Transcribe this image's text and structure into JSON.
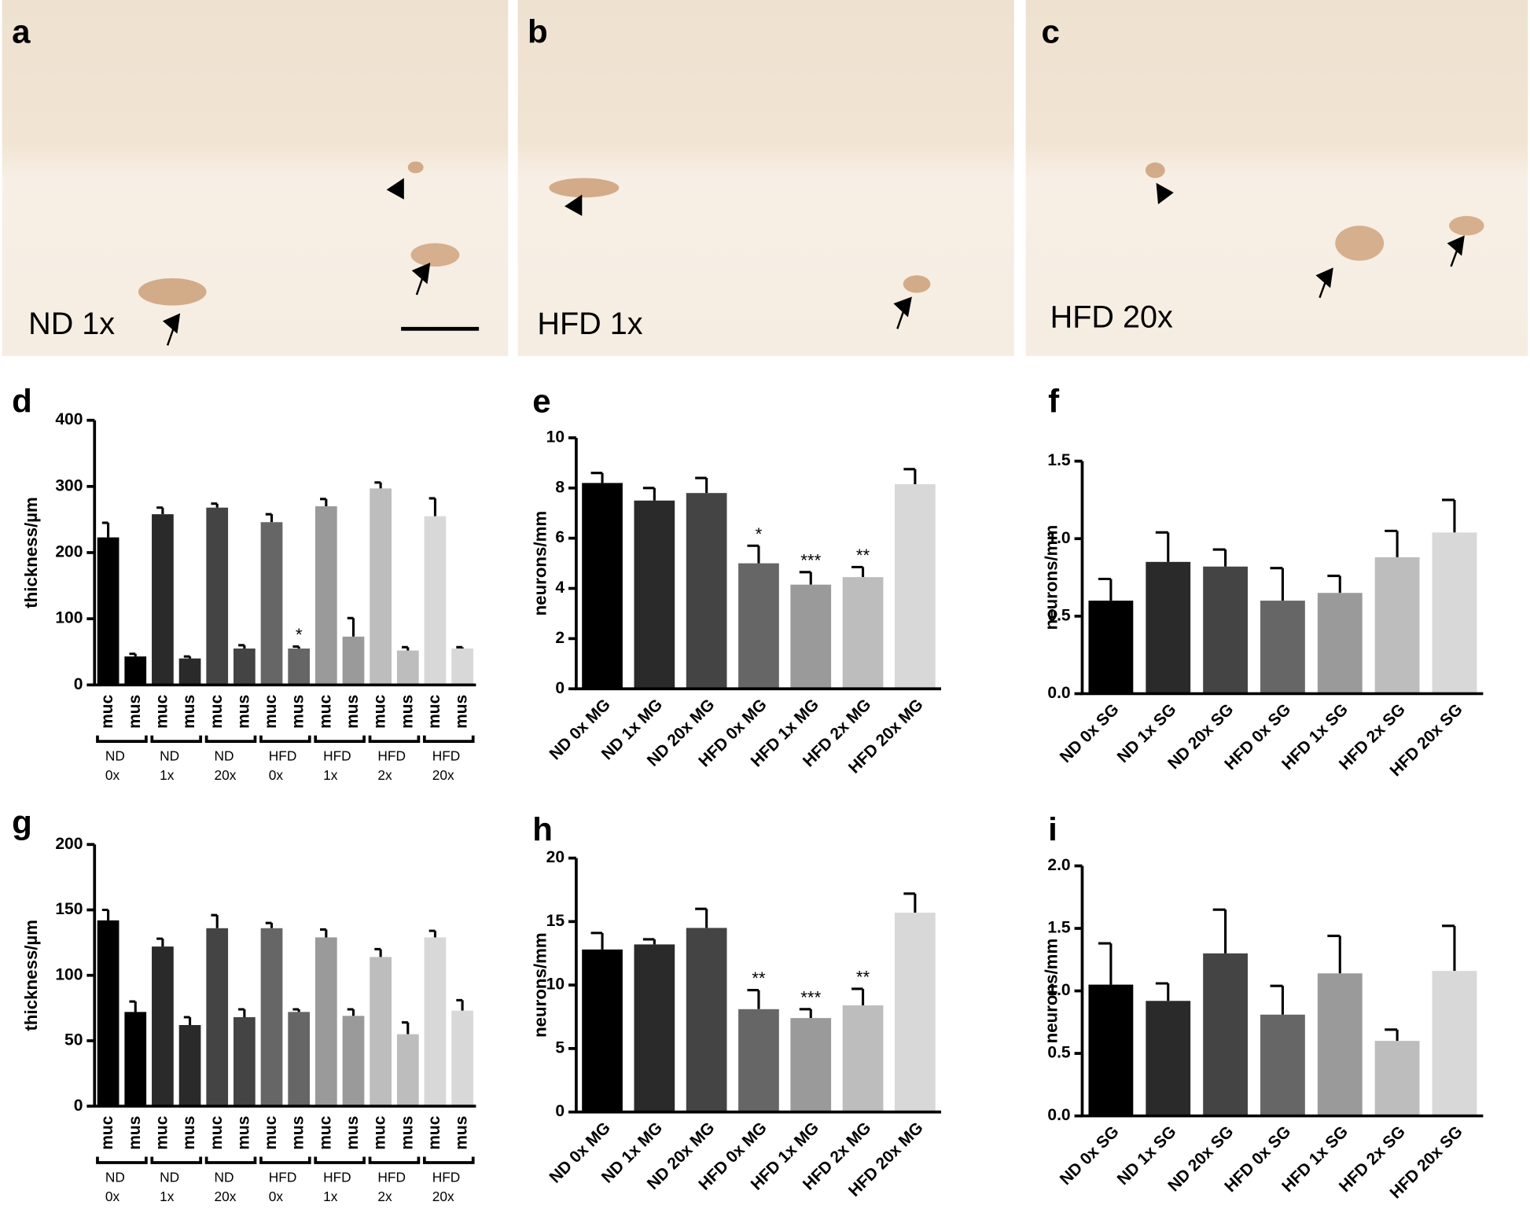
{
  "images": [
    {
      "letter": "a",
      "label": "ND 1x"
    },
    {
      "letter": "b",
      "label": "HFD 1x"
    },
    {
      "letter": "c",
      "label": "HFD 20x"
    }
  ],
  "chart_data": [
    {
      "type": "bar",
      "letter": "d",
      "y_label": "thickness/µm",
      "categories": [
        "muc",
        "mus",
        "muc",
        "mus",
        "muc",
        "mus",
        "muc",
        "mus",
        "muc",
        "mus",
        "muc",
        "mus",
        "muc",
        "mus"
      ],
      "groups": [
        [
          "ND",
          "0x"
        ],
        [
          "ND",
          "1x"
        ],
        [
          "ND",
          "20x"
        ],
        [
          "HFD",
          "0x"
        ],
        [
          "HFD",
          "1x"
        ],
        [
          "HFD",
          "2x"
        ],
        [
          "HFD",
          "20x"
        ]
      ],
      "values": [
        223,
        43,
        258,
        40,
        268,
        55,
        246,
        55,
        270,
        73,
        297,
        52,
        255,
        55
      ],
      "errors": [
        22,
        4,
        10,
        3,
        6,
        5,
        12,
        3,
        11,
        28,
        9,
        5,
        27,
        2
      ],
      "significance": [
        null,
        null,
        null,
        null,
        null,
        null,
        null,
        "*",
        null,
        null,
        null,
        null,
        null,
        null
      ],
      "colors": [
        "#000000",
        "#000000",
        "#2a2a2a",
        "#2a2a2a",
        "#444444",
        "#444444",
        "#666666",
        "#666666",
        "#9a9a9a",
        "#9a9a9a",
        "#bdbdbd",
        "#bdbdbd",
        "#d8d8d8",
        "#d8d8d8"
      ],
      "ylim": [
        0,
        400
      ],
      "yticks": [
        0,
        100,
        200,
        300,
        400
      ]
    },
    {
      "type": "bar",
      "letter": "e",
      "y_label": "neurons/mm",
      "categories": [
        "ND 0x MG",
        "ND 1x MG",
        "ND 20x MG",
        "HFD 0x MG",
        "HFD 1x MG",
        "HFD 2x MG",
        "HFD 20x MG"
      ],
      "values": [
        8.2,
        7.5,
        7.8,
        5.0,
        4.15,
        4.45,
        8.15
      ],
      "errors": [
        0.4,
        0.5,
        0.6,
        0.7,
        0.5,
        0.4,
        0.6
      ],
      "significance": [
        null,
        null,
        null,
        "*",
        "***",
        "**",
        null
      ],
      "colors": [
        "#000000",
        "#2a2a2a",
        "#444444",
        "#666666",
        "#9a9a9a",
        "#bdbdbd",
        "#d8d8d8"
      ],
      "ylim": [
        0,
        10
      ],
      "yticks": [
        0,
        2,
        4,
        6,
        8,
        10
      ]
    },
    {
      "type": "bar",
      "letter": "f",
      "y_label": "neurons/mm",
      "categories": [
        "ND 0x SG",
        "ND 1x SG",
        "ND 20x SG",
        "HFD 0x SG",
        "HFD 1x SG",
        "HFD 2x SG",
        "HFD 20x SG"
      ],
      "values": [
        0.6,
        0.85,
        0.82,
        0.6,
        0.65,
        0.88,
        1.04
      ],
      "errors": [
        0.14,
        0.19,
        0.11,
        0.21,
        0.11,
        0.17,
        0.21
      ],
      "colors": [
        "#000000",
        "#2a2a2a",
        "#444444",
        "#666666",
        "#9a9a9a",
        "#bdbdbd",
        "#d8d8d8"
      ],
      "ylim": [
        0,
        1.5
      ],
      "yticks": [
        {
          "value": 0,
          "label": "0.0"
        },
        {
          "value": 0.5,
          "label": "0.5"
        },
        {
          "value": 1,
          "label": "1.0"
        },
        {
          "value": 1.5,
          "label": "1.5"
        }
      ]
    },
    {
      "type": "bar",
      "letter": "g",
      "y_label": "thickness/µm",
      "categories": [
        "muc",
        "mus",
        "muc",
        "mus",
        "muc",
        "mus",
        "muc",
        "mus",
        "muc",
        "mus",
        "muc",
        "mus",
        "muc",
        "mus"
      ],
      "groups": [
        [
          "ND",
          "0x"
        ],
        [
          "ND",
          "1x"
        ],
        [
          "ND",
          "20x"
        ],
        [
          "HFD",
          "0x"
        ],
        [
          "HFD",
          "1x"
        ],
        [
          "HFD",
          "2x"
        ],
        [
          "HFD",
          "20x"
        ]
      ],
      "values": [
        142,
        72,
        122,
        62,
        136,
        68,
        136,
        72,
        129,
        69,
        114,
        55,
        129,
        73
      ],
      "errors": [
        8,
        8,
        6,
        6,
        10,
        6,
        4,
        2,
        6,
        5,
        6,
        9,
        5,
        8
      ],
      "colors": [
        "#000000",
        "#000000",
        "#2a2a2a",
        "#2a2a2a",
        "#444444",
        "#444444",
        "#666666",
        "#666666",
        "#9a9a9a",
        "#9a9a9a",
        "#bdbdbd",
        "#bdbdbd",
        "#d8d8d8",
        "#d8d8d8"
      ],
      "ylim": [
        0,
        200
      ],
      "yticks": [
        0,
        50,
        100,
        150,
        200
      ]
    },
    {
      "type": "bar",
      "letter": "h",
      "y_label": "neurons/mm",
      "categories": [
        "ND 0x MG",
        "ND 1x MG",
        "ND 20x MG",
        "HFD 0x MG",
        "HFD 1x MG",
        "HFD 2x MG",
        "HFD 20x MG"
      ],
      "values": [
        12.8,
        13.2,
        14.5,
        8.1,
        7.4,
        8.4,
        15.7
      ],
      "errors": [
        1.3,
        0.4,
        1.5,
        1.5,
        0.7,
        1.3,
        1.5
      ],
      "significance": [
        null,
        null,
        null,
        "**",
        "***",
        "**",
        null
      ],
      "colors": [
        "#000000",
        "#2a2a2a",
        "#444444",
        "#666666",
        "#9a9a9a",
        "#bdbdbd",
        "#d8d8d8"
      ],
      "ylim": [
        0,
        20
      ],
      "yticks": [
        0,
        5,
        10,
        15,
        20
      ]
    },
    {
      "type": "bar",
      "letter": "i",
      "y_label": "neurons/mm",
      "categories": [
        "ND 0x SG",
        "ND 1x SG",
        "ND 20x SG",
        "HFD 0x SG",
        "HFD 1x SG",
        "HFD 2x SG",
        "HFD 20x SG"
      ],
      "values": [
        1.05,
        0.92,
        1.3,
        0.81,
        1.14,
        0.6,
        1.16
      ],
      "errors": [
        0.33,
        0.14,
        0.35,
        0.23,
        0.3,
        0.09,
        0.36
      ],
      "colors": [
        "#000000",
        "#2a2a2a",
        "#444444",
        "#666666",
        "#9a9a9a",
        "#bdbdbd",
        "#d8d8d8"
      ],
      "ylim": [
        0,
        2
      ],
      "yticks": [
        {
          "value": 0,
          "label": "0.0"
        },
        {
          "value": 0.5,
          "label": "0.5"
        },
        {
          "value": 1,
          "label": "1.0"
        },
        {
          "value": 1.5,
          "label": "1.5"
        },
        {
          "value": 2,
          "label": "2.0"
        }
      ]
    }
  ]
}
